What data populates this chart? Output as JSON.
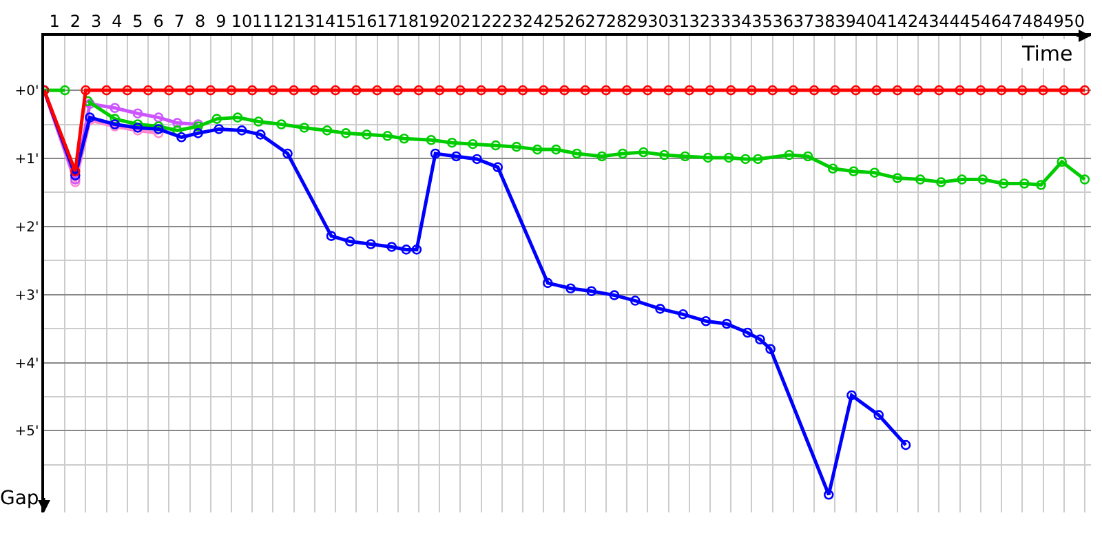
{
  "chart_data": {
    "type": "line",
    "xlabel": "Time",
    "ylabel": "Gap",
    "xlim": [
      0.5,
      50.8
    ],
    "ylim": [
      6.2,
      -0.8
    ],
    "xticks": [
      1,
      2,
      3,
      4,
      5,
      6,
      7,
      8,
      9,
      10,
      11,
      12,
      13,
      14,
      15,
      16,
      17,
      18,
      19,
      20,
      21,
      22,
      23,
      24,
      25,
      26,
      27,
      28,
      29,
      30,
      31,
      32,
      33,
      34,
      35,
      36,
      37,
      38,
      39,
      40,
      41,
      42,
      43,
      44,
      45,
      46,
      47,
      48,
      49,
      50,
      {
        "value": 0.5,
        "label": null
      },
      {
        "value": 1.5,
        "label": null
      },
      {
        "value": 2.5,
        "label": null
      },
      {
        "value": 3.5,
        "label": null
      },
      {
        "value": 4.5,
        "label": null
      },
      {
        "value": 5.5,
        "label": null
      },
      {
        "value": 6.5,
        "label": null
      },
      {
        "value": 7.5,
        "label": null
      },
      {
        "value": 8.5,
        "label": null
      },
      {
        "value": 9.5,
        "label": null
      },
      {
        "value": 10.5,
        "label": null
      },
      {
        "value": 11.5,
        "label": null
      },
      {
        "value": 12.5,
        "label": null
      },
      {
        "value": 13.5,
        "label": null
      },
      {
        "value": 14.5,
        "label": null
      },
      {
        "value": 15.5,
        "label": null
      },
      {
        "value": 16.5,
        "label": null
      },
      {
        "value": 17.5,
        "label": null
      },
      {
        "value": 18.5,
        "label": null
      },
      {
        "value": 19.5,
        "label": null
      },
      {
        "value": 20.5,
        "label": null
      },
      {
        "value": 21.5,
        "label": null
      },
      {
        "value": 22.5,
        "label": null
      },
      {
        "value": 23.5,
        "label": null
      },
      {
        "value": 24.5,
        "label": null
      },
      {
        "value": 25.5,
        "label": null
      },
      {
        "value": 26.5,
        "label": null
      },
      {
        "value": 27.5,
        "label": null
      },
      {
        "value": 28.5,
        "label": null
      },
      {
        "value": 29.5,
        "label": null
      },
      {
        "value": 30.5,
        "label": null
      },
      {
        "value": 31.5,
        "label": null
      },
      {
        "value": 32.5,
        "label": null
      },
      {
        "value": 33.5,
        "label": null
      },
      {
        "value": 34.5,
        "label": null
      },
      {
        "value": 35.5,
        "label": null
      },
      {
        "value": 36.5,
        "label": null
      },
      {
        "value": 37.5,
        "label": null
      },
      {
        "value": 38.5,
        "label": null
      },
      {
        "value": 39.5,
        "label": null
      },
      {
        "value": 40.5,
        "label": null
      },
      {
        "value": 41.5,
        "label": null
      },
      {
        "value": 42.5,
        "label": null
      },
      {
        "value": 43.5,
        "label": null
      },
      {
        "value": 44.5,
        "label": null
      },
      {
        "value": 45.5,
        "label": null
      },
      {
        "value": 46.5,
        "label": null
      },
      {
        "value": 47.5,
        "label": null
      },
      {
        "value": 48.5,
        "label": null
      },
      {
        "value": 49.5,
        "label": null
      },
      {
        "value": 50.5,
        "label": null
      }
    ],
    "yticks": [
      {
        "value": 0,
        "label": "+0'"
      },
      {
        "value": 1,
        "label": "+1'"
      },
      {
        "value": 2,
        "label": "+2'"
      },
      {
        "value": 3,
        "label": "+3'"
      },
      {
        "value": 4,
        "label": "+4'"
      },
      {
        "value": 5,
        "label": "+5'"
      },
      {
        "value": 0.5,
        "label": null
      },
      {
        "value": 1.5,
        "label": null
      },
      {
        "value": 2.5,
        "label": null
      },
      {
        "value": 3.5,
        "label": null
      },
      {
        "value": 4.5,
        "label": null
      },
      {
        "value": 5.5,
        "label": null
      }
    ],
    "grid": true,
    "marker": "circle",
    "line_style": "solid",
    "series": [
      {
        "color": "#ff88cc",
        "x": [
          0.5,
          2.0,
          2.7,
          3.9,
          5.0,
          6.0
        ],
        "values": [
          0,
          1.35,
          0.44,
          0.53,
          0.59,
          0.63
        ]
      },
      {
        "color": "#cc55ff",
        "x": [
          0.5,
          2.0,
          2.7,
          3.9,
          5.0,
          6.0,
          6.9,
          7.9
        ],
        "values": [
          0,
          1.31,
          0.2,
          0.26,
          0.34,
          0.4,
          0.48,
          0.5
        ]
      },
      {
        "color": "#00cc00",
        "x": [
          0.5,
          1.5,
          2.0,
          2.6,
          3.9,
          5.0,
          6.0,
          6.9,
          7.9,
          8.8,
          9.8,
          10.8,
          11.9,
          13.0,
          14.1,
          15.0,
          16.0,
          17.0,
          17.8,
          19.1,
          20.1,
          21.1,
          22.2,
          23.2,
          24.2,
          25.1,
          26.1,
          27.3,
          28.3,
          29.3,
          30.3,
          31.3,
          32.4,
          33.4,
          34.2,
          34.8,
          36.3,
          37.2,
          38.4,
          39.4,
          40.4,
          41.5,
          42.6,
          43.6,
          44.6,
          45.6,
          46.6,
          47.6,
          48.4,
          49.4,
          50.5
        ],
        "values": [
          0,
          0,
          null,
          0.16,
          0.42,
          0.5,
          0.53,
          0.59,
          0.53,
          0.42,
          0.4,
          0.46,
          0.5,
          0.55,
          0.59,
          0.63,
          0.65,
          0.67,
          0.71,
          0.73,
          0.77,
          0.79,
          0.81,
          0.83,
          0.87,
          0.87,
          0.93,
          0.97,
          0.93,
          0.91,
          0.95,
          0.97,
          0.99,
          0.99,
          1.01,
          1.01,
          0.95,
          0.97,
          1.15,
          1.19,
          1.21,
          1.29,
          1.31,
          1.35,
          1.31,
          1.31,
          1.37,
          1.37,
          1.39,
          1.05,
          1.31
        ]
      },
      {
        "color": "#0000ff",
        "x": [
          0.5,
          2.0,
          2.7,
          3.9,
          5.0,
          6.0,
          7.1,
          7.9,
          8.9,
          10.0,
          10.9,
          12.2,
          14.3,
          15.2,
          16.2,
          17.2,
          17.9,
          18.4,
          19.3,
          20.3,
          21.3,
          22.3,
          24.7,
          25.8,
          26.8,
          27.9,
          28.9,
          30.1,
          31.2,
          32.3,
          33.3,
          34.3,
          34.9,
          35.4,
          38.2,
          39.3,
          40.6,
          41.9
        ],
        "values": [
          0,
          1.25,
          0.4,
          0.5,
          0.55,
          0.57,
          0.69,
          0.63,
          0.57,
          0.59,
          0.65,
          0.93,
          2.14,
          2.22,
          2.26,
          2.3,
          2.34,
          2.34,
          0.93,
          0.97,
          1.01,
          1.13,
          2.83,
          2.91,
          2.95,
          3.01,
          3.09,
          3.21,
          3.29,
          3.39,
          3.43,
          3.56,
          3.66,
          3.8,
          5.94,
          4.48,
          4.77,
          5.21
        ]
      },
      {
        "color": "#ff0000",
        "x": [
          0.5,
          2.0,
          2.5,
          3.5,
          4.5,
          5.5,
          6.5,
          7.5,
          8.5,
          9.5,
          10.5,
          11.5,
          12.5,
          13.5,
          14.5,
          15.5,
          16.5,
          17.5,
          18.5,
          19.5,
          20.5,
          21.5,
          22.5,
          23.5,
          24.5,
          25.5,
          26.5,
          27.5,
          28.5,
          29.5,
          30.5,
          31.5,
          32.5,
          33.5,
          34.5,
          35.5,
          36.5,
          37.5,
          38.5,
          39.5,
          40.5,
          41.5,
          42.5,
          43.5,
          44.5,
          45.5,
          46.5,
          47.5,
          48.5,
          49.5,
          50.5
        ],
        "values": [
          0,
          1.19,
          0,
          0,
          0,
          0,
          0,
          0,
          0,
          0,
          0,
          0,
          0,
          0,
          0,
          0,
          0,
          0,
          0,
          0,
          0,
          0,
          0,
          0,
          0,
          0,
          0,
          0,
          0,
          0,
          0,
          0,
          0,
          0,
          0,
          0,
          0,
          0,
          0,
          0,
          0,
          0,
          0,
          0,
          0,
          0,
          0,
          0,
          0,
          0,
          0
        ]
      }
    ]
  }
}
